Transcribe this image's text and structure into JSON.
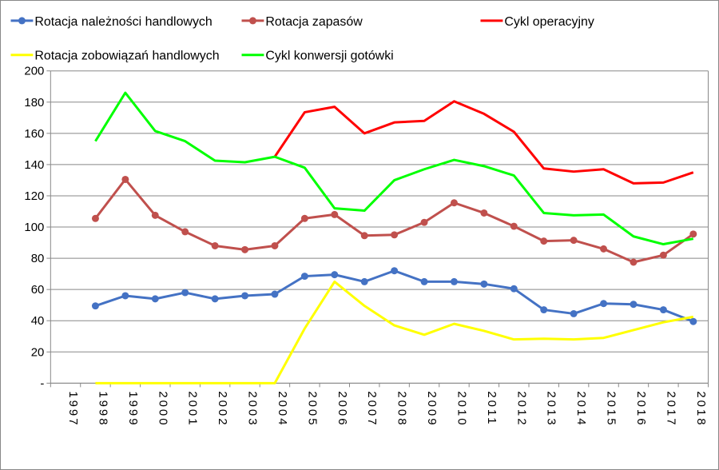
{
  "chart_data": {
    "type": "line",
    "title": "",
    "xlabel": "",
    "ylabel": "",
    "ylim": [
      0,
      200
    ],
    "y_ticks": [
      "-",
      "20",
      "40",
      "60",
      "80",
      "100",
      "120",
      "140",
      "160",
      "180",
      "200"
    ],
    "grid": true,
    "legend_placement": "top",
    "categories": [
      "1997",
      "1998",
      "1999",
      "2000",
      "2001",
      "2002",
      "2003",
      "2004",
      "2005",
      "2006",
      "2007",
      "2008",
      "2009",
      "2010",
      "2011",
      "2012",
      "2013",
      "2014",
      "2015",
      "2016",
      "2017",
      "2018"
    ],
    "series": [
      {
        "name": "Rotacja należności handlowych",
        "color": "#4472C4",
        "markers": true,
        "values": [
          null,
          49.5,
          56,
          54,
          58,
          54,
          56,
          57,
          68.5,
          69.5,
          65,
          72,
          65,
          65,
          63.5,
          60.5,
          47,
          44.5,
          51,
          50.5,
          47,
          39.5
        ]
      },
      {
        "name": "Rotacja zapasów",
        "color": "#C0504D",
        "markers": true,
        "values": [
          null,
          105.5,
          130.5,
          107.5,
          97,
          88,
          85.5,
          88,
          105.5,
          108,
          94.5,
          95,
          103,
          115.5,
          109,
          100.5,
          91,
          91.5,
          86,
          77.5,
          82,
          95.5
        ]
      },
      {
        "name": "Cykl operacyjny",
        "color": "#FF0000",
        "markers": false,
        "values": [
          null,
          null,
          null,
          null,
          null,
          null,
          null,
          145,
          173.5,
          177,
          160,
          167,
          168,
          180.5,
          172.5,
          161,
          137.5,
          135.5,
          137,
          128,
          128.5,
          135
        ]
      },
      {
        "name": "Rotacja zobowiązań handlowych",
        "color": "#FFFF00",
        "markers": false,
        "values": [
          null,
          0,
          0,
          0,
          0,
          0,
          0,
          0,
          35,
          65,
          49.5,
          37,
          31,
          38,
          33.5,
          28,
          28.5,
          28,
          29,
          34,
          39,
          42.5
        ]
      },
      {
        "name": "Cykl konwersji gotówki",
        "color": "#00FF00",
        "markers": false,
        "values": [
          null,
          155,
          186,
          161.5,
          155,
          142.5,
          141.5,
          145,
          138,
          112,
          110.5,
          130,
          137,
          143,
          139,
          133,
          109,
          107.5,
          108,
          94,
          89,
          92.5
        ]
      }
    ]
  }
}
